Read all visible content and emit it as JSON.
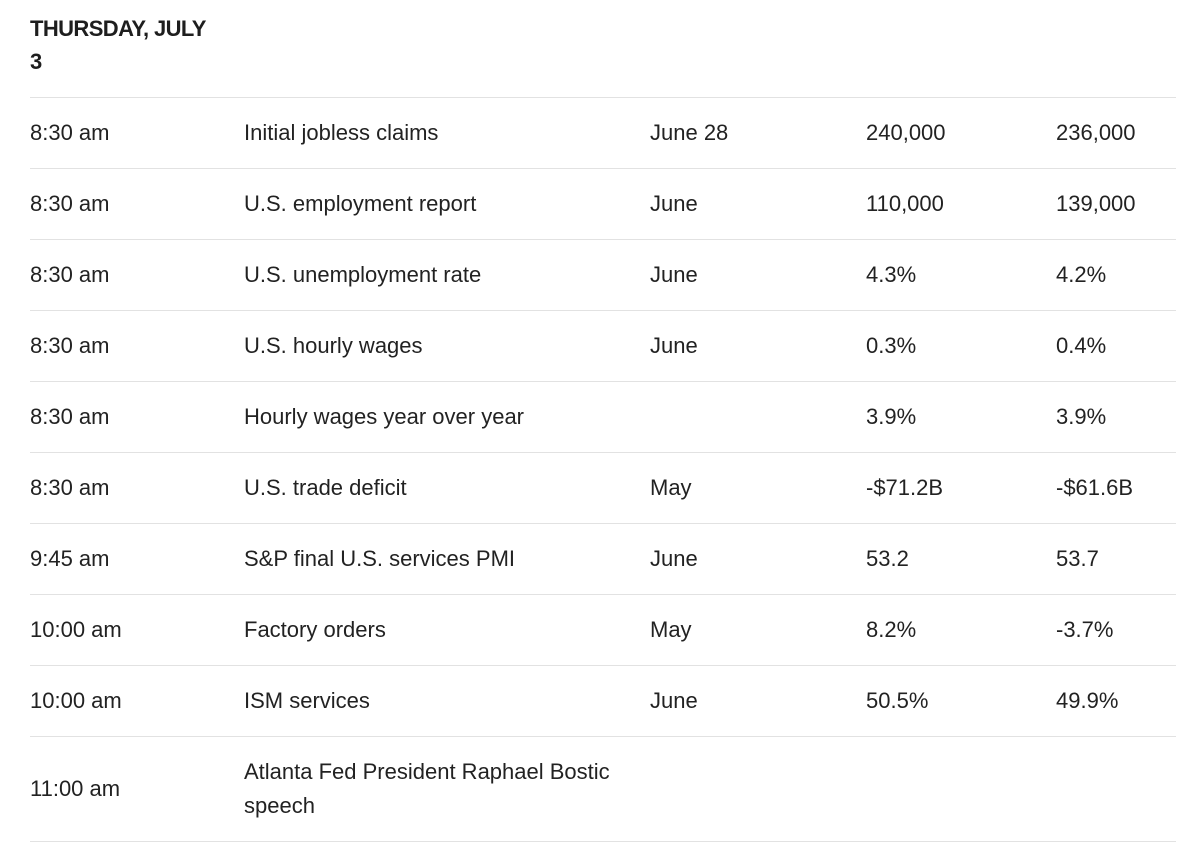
{
  "heading": {
    "line1": "THURSDAY, JULY",
    "line2": "3"
  },
  "rows": [
    {
      "time": "8:30 am",
      "report": "Initial jobless claims",
      "period": "June 28",
      "median_forecast": "240,000",
      "previous": "236,000"
    },
    {
      "time": "8:30 am",
      "report": "U.S. employment report",
      "period": "June",
      "median_forecast": "110,000",
      "previous": "139,000"
    },
    {
      "time": "8:30 am",
      "report": "U.S. unemployment rate",
      "period": "June",
      "median_forecast": "4.3%",
      "previous": "4.2%"
    },
    {
      "time": "8:30 am",
      "report": "U.S. hourly wages",
      "period": "June",
      "median_forecast": "0.3%",
      "previous": "0.4%"
    },
    {
      "time": "8:30 am",
      "report": "Hourly wages year over year",
      "period": "",
      "median_forecast": "3.9%",
      "previous": "3.9%"
    },
    {
      "time": "8:30 am",
      "report": "U.S. trade deficit",
      "period": "May",
      "median_forecast": "-$71.2B",
      "previous": "-$61.6B"
    },
    {
      "time": "9:45 am",
      "report": "S&P final U.S. services PMI",
      "period": "June",
      "median_forecast": "53.2",
      "previous": "53.7"
    },
    {
      "time": "10:00 am",
      "report": "Factory orders",
      "period": "May",
      "median_forecast": "8.2%",
      "previous": "-3.7%"
    },
    {
      "time": "10:00 am",
      "report": "ISM services",
      "period": "June",
      "median_forecast": "50.5%",
      "previous": "49.9%"
    },
    {
      "time": "11:00 am",
      "report": "Atlanta Fed President Raphael Bostic speech",
      "period": "",
      "median_forecast": "",
      "previous": ""
    }
  ]
}
